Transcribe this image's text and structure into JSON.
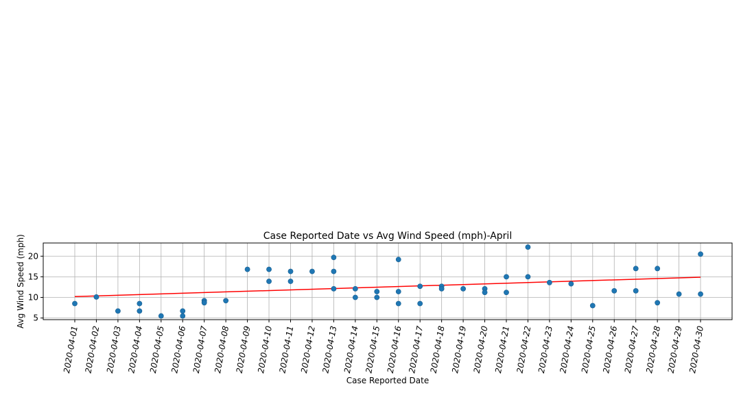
{
  "chart_data": {
    "type": "scatter",
    "title": "Case Reported Date vs Avg Wind Speed (mph)-April",
    "xlabel": "Case Reported Date",
    "ylabel": "Avg Wind Speed (mph)",
    "x_ticks": [
      "2020-04-01",
      "2020-04-02",
      "2020-04-03",
      "2020-04-04",
      "2020-04-05",
      "2020-04-06",
      "2020-04-07",
      "2020-04-08",
      "2020-04-09",
      "2020-04-10",
      "2020-04-11",
      "2020-04-12",
      "2020-04-13",
      "2020-04-14",
      "2020-04-15",
      "2020-04-16",
      "2020-04-17",
      "2020-04-18",
      "2020-04-19",
      "2020-04-20",
      "2020-04-21",
      "2020-04-22",
      "2020-04-23",
      "2020-04-24",
      "2020-04-25",
      "2020-04-26",
      "2020-04-27",
      "2020-04-28",
      "2020-04-29",
      "2020-04-30"
    ],
    "y_ticks": [
      5,
      10,
      15,
      20
    ],
    "ylim": [
      4.6,
      23.2
    ],
    "grid": true,
    "point_color": "#1f77b4",
    "trend_color": "#ff0000",
    "points": [
      {
        "x": "2020-04-01",
        "y": 8.5
      },
      {
        "x": "2020-04-02",
        "y": 10.1
      },
      {
        "x": "2020-04-03",
        "y": 6.7
      },
      {
        "x": "2020-04-04",
        "y": 8.5
      },
      {
        "x": "2020-04-04",
        "y": 6.7
      },
      {
        "x": "2020-04-05",
        "y": 5.5
      },
      {
        "x": "2020-04-06",
        "y": 6.7
      },
      {
        "x": "2020-04-06",
        "y": 5.5
      },
      {
        "x": "2020-04-07",
        "y": 9.2
      },
      {
        "x": "2020-04-07",
        "y": 8.7
      },
      {
        "x": "2020-04-08",
        "y": 9.2
      },
      {
        "x": "2020-04-09",
        "y": 16.8
      },
      {
        "x": "2020-04-10",
        "y": 16.8
      },
      {
        "x": "2020-04-10",
        "y": 13.9
      },
      {
        "x": "2020-04-11",
        "y": 16.3
      },
      {
        "x": "2020-04-11",
        "y": 13.9
      },
      {
        "x": "2020-04-12",
        "y": 16.3
      },
      {
        "x": "2020-04-13",
        "y": 19.7
      },
      {
        "x": "2020-04-13",
        "y": 16.3
      },
      {
        "x": "2020-04-13",
        "y": 12.1
      },
      {
        "x": "2020-04-14",
        "y": 12.1
      },
      {
        "x": "2020-04-14",
        "y": 10.0
      },
      {
        "x": "2020-04-15",
        "y": 11.4
      },
      {
        "x": "2020-04-15",
        "y": 10.0
      },
      {
        "x": "2020-04-16",
        "y": 19.2
      },
      {
        "x": "2020-04-16",
        "y": 11.4
      },
      {
        "x": "2020-04-16",
        "y": 8.5
      },
      {
        "x": "2020-04-17",
        "y": 12.7
      },
      {
        "x": "2020-04-17",
        "y": 8.5
      },
      {
        "x": "2020-04-18",
        "y": 12.7
      },
      {
        "x": "2020-04-18",
        "y": 12.1
      },
      {
        "x": "2020-04-19",
        "y": 12.1
      },
      {
        "x": "2020-04-20",
        "y": 12.1
      },
      {
        "x": "2020-04-20",
        "y": 11.2
      },
      {
        "x": "2020-04-21",
        "y": 15.0
      },
      {
        "x": "2020-04-21",
        "y": 11.2
      },
      {
        "x": "2020-04-22",
        "y": 22.2
      },
      {
        "x": "2020-04-22",
        "y": 15.0
      },
      {
        "x": "2020-04-23",
        "y": 13.6
      },
      {
        "x": "2020-04-24",
        "y": 13.3
      },
      {
        "x": "2020-04-25",
        "y": 8.0
      },
      {
        "x": "2020-04-26",
        "y": 11.6
      },
      {
        "x": "2020-04-27",
        "y": 17.0
      },
      {
        "x": "2020-04-27",
        "y": 11.6
      },
      {
        "x": "2020-04-28",
        "y": 17.0
      },
      {
        "x": "2020-04-28",
        "y": 8.7
      },
      {
        "x": "2020-04-29",
        "y": 10.8
      },
      {
        "x": "2020-04-30",
        "y": 20.5
      },
      {
        "x": "2020-04-30",
        "y": 10.8
      }
    ],
    "trendline": {
      "start": {
        "x": "2020-04-01",
        "y": 10.2
      },
      "end": {
        "x": "2020-04-30",
        "y": 14.9
      }
    }
  }
}
